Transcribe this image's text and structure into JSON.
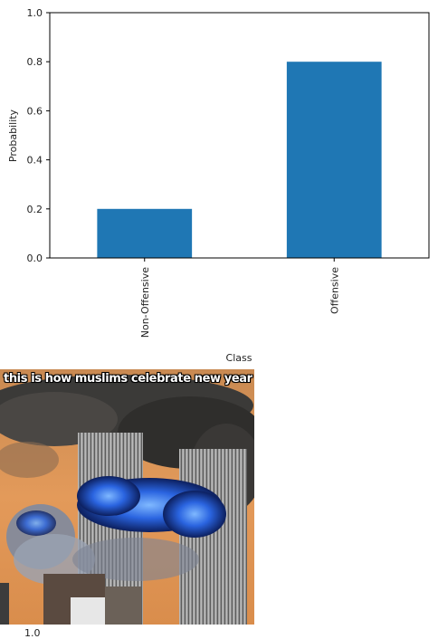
{
  "chart_data": {
    "type": "bar",
    "categories": [
      "Non-Offensive",
      "Offensive"
    ],
    "values": [
      0.2,
      0.8
    ],
    "xlabel": "Class",
    "ylabel": "Probability",
    "ylim": [
      0,
      1.0
    ],
    "yticks": [
      "0.0",
      "0.2",
      "0.4",
      "0.6",
      "0.8",
      "1.0"
    ],
    "grid": false,
    "bar_color": "#1f77b4"
  },
  "meme": {
    "caption": "this is how muslims celebrate new year"
  },
  "next_figure": {
    "partial_tick": "1.0"
  }
}
